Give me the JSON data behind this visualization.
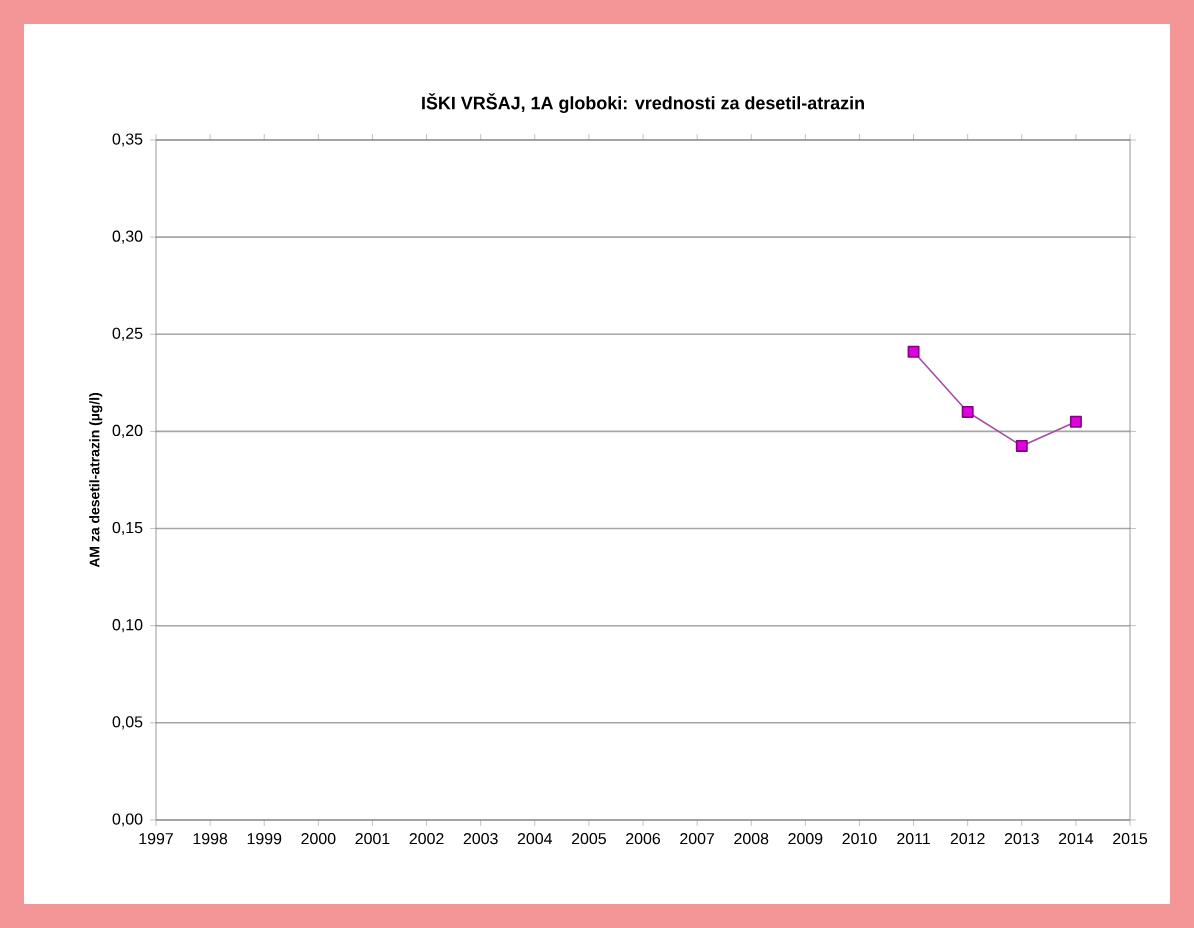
{
  "chart_data": {
    "type": "line",
    "title": "IŠKI VRŠAJ, 1A globoki: vrednosti za desetil-atrazin",
    "ylabel": "AM za desetil-atrazin (µg/l)",
    "x": [
      2011,
      2012,
      2013,
      2014
    ],
    "series": [
      {
        "color": "#e000e0",
        "values": [
          0.241,
          0.21,
          0.1925,
          0.205
        ]
      }
    ],
    "xlim": [
      1997,
      2015
    ],
    "xticks": [
      1997,
      1998,
      1999,
      2000,
      2001,
      2002,
      2003,
      2004,
      2005,
      2006,
      2007,
      2008,
      2009,
      2010,
      2011,
      2012,
      2013,
      2014,
      2015
    ],
    "ylim": [
      0,
      0.35
    ],
    "yticks": [
      {
        "value": 0,
        "label": "0,00"
      },
      {
        "value": 0.05,
        "label": "0,05"
      },
      {
        "value": 0.1,
        "label": "0,10"
      },
      {
        "value": 0.15,
        "label": "0,15"
      },
      {
        "value": 0.2,
        "label": "0,20"
      },
      {
        "value": 0.25,
        "label": "0,25"
      },
      {
        "value": 0.3,
        "label": "0,30"
      },
      {
        "value": 0.35,
        "label": "0,35"
      }
    ],
    "grid": "y",
    "marker": "square",
    "line_style": "solid"
  }
}
